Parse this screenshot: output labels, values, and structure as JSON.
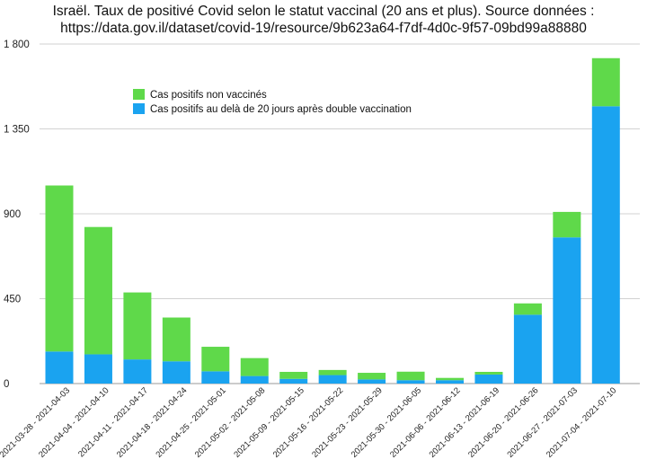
{
  "chart_data": {
    "type": "bar",
    "stacked": true,
    "title": "Israël. Taux de positivé Covid selon le statut vaccinal (20 ans et plus). Source données :",
    "subtitle": "https://data.gov.il/dataset/covid-19/resource/9b623a64-f7df-4d0c-9f57-09bd99a88880",
    "ylim": [
      0,
      1800
    ],
    "yticks": [
      0,
      450,
      900,
      1350,
      1800
    ],
    "ytick_labels": [
      "0",
      "450",
      "900",
      "1 350",
      "1 800"
    ],
    "grid": true,
    "legend_position": "upper-left",
    "categories": [
      "2021-03-28 - 2021-04-03",
      "2021-04-04 - 2021-04-10",
      "2021-04-11 - 2021-04-17",
      "2021-04-18 - 2021-04-24",
      "2021-04-25 - 2021-05-01",
      "2021-05-02 - 2021-05-08",
      "2021-05-09 - 2021-05-15",
      "2021-05-16 - 2021-05-22",
      "2021-05-23 - 2021-05-29",
      "2021-05-30 - 2021-06-05",
      "2021-06-06 - 2021-06-12",
      "2021-06-13 - 2021-06-19",
      "2021-06-20 - 2021-06-26",
      "2021-06-27 - 2021-07-03",
      "2021-07-04 - 2021-07-10"
    ],
    "series": [
      {
        "name": "Cas positifs au delà de 20 jours après double vaccination",
        "color": "#1aa3f0",
        "values": [
          170,
          155,
          128,
          118,
          65,
          40,
          25,
          45,
          22,
          18,
          18,
          48,
          365,
          775,
          1470
        ]
      },
      {
        "name": "Cas positifs non vaccinés",
        "color": "#5fd94a",
        "values": [
          880,
          675,
          355,
          232,
          130,
          95,
          37,
          27,
          35,
          45,
          12,
          14,
          60,
          135,
          255
        ]
      }
    ],
    "legend_order": [
      1,
      0
    ]
  }
}
